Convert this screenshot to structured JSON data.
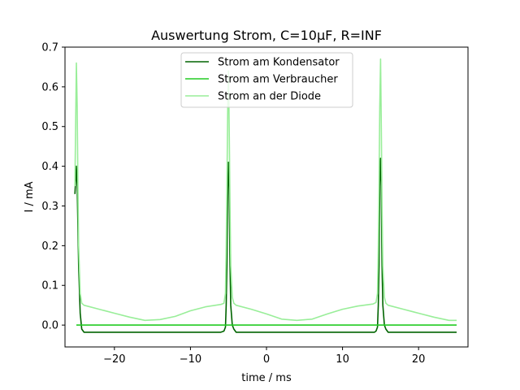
{
  "chart_data": {
    "type": "line",
    "title": "Auswertung Strom, C=10μF, R=INF",
    "xlabel": "time / ms",
    "ylabel": "I / mA",
    "xlim": [
      -26.5,
      26.5
    ],
    "ylim": [
      -0.055,
      0.7
    ],
    "xticks": [
      -20,
      -10,
      0,
      10,
      20
    ],
    "xtick_labels": [
      "−20",
      "−10",
      "0",
      "10",
      "20"
    ],
    "yticks": [
      0.0,
      0.1,
      0.2,
      0.3,
      0.4,
      0.5,
      0.6,
      0.7
    ],
    "ytick_labels": [
      "0.0",
      "0.1",
      "0.2",
      "0.3",
      "0.4",
      "0.5",
      "0.6",
      "0.7"
    ],
    "grid": false,
    "legend_position": "top-center",
    "series": [
      {
        "name": "Strom am Kondensator",
        "color": "#006400",
        "x": [
          -25.2,
          -25.0,
          -24.9,
          -24.7,
          -24.5,
          -24.3,
          -24.0,
          -20,
          -15,
          -10,
          -6,
          -5.6,
          -5.4,
          -5.3,
          -5.2,
          -5.1,
          -5.0,
          -4.9,
          -4.8,
          -4.7,
          -4.5,
          -4.3,
          -4.0,
          0,
          5,
          10,
          14.2,
          14.4,
          14.6,
          14.7,
          14.8,
          14.9,
          15.0,
          15.1,
          15.2,
          15.3,
          15.5,
          15.7,
          16.0,
          20,
          25
        ],
        "y": [
          0.33,
          0.4,
          0.35,
          0.15,
          0.03,
          -0.01,
          -0.018,
          -0.018,
          -0.018,
          -0.018,
          -0.018,
          -0.015,
          -0.005,
          0.05,
          0.15,
          0.34,
          0.41,
          0.35,
          0.15,
          0.05,
          0.0,
          -0.01,
          -0.018,
          -0.018,
          -0.018,
          -0.018,
          -0.018,
          -0.015,
          -0.005,
          0.05,
          0.15,
          0.35,
          0.42,
          0.36,
          0.15,
          0.05,
          0.0,
          -0.01,
          -0.018,
          -0.018,
          -0.018
        ]
      },
      {
        "name": "Strom am Verbraucher",
        "color": "#22cc22",
        "x": [
          -25.0,
          25.0
        ],
        "y": [
          0.0,
          0.0
        ]
      },
      {
        "name": "Strom an der Diode",
        "color": "#99ee99",
        "x": [
          -25.2,
          -25.0,
          -24.9,
          -24.8,
          -24.7,
          -24.5,
          -24.3,
          -24.0,
          -22,
          -20,
          -18,
          -16,
          -14,
          -12,
          -10,
          -8,
          -6,
          -5.6,
          -5.4,
          -5.3,
          -5.2,
          -5.1,
          -5.0,
          -4.9,
          -4.8,
          -4.7,
          -4.5,
          -4.3,
          -4.0,
          -2,
          0,
          2,
          4,
          6,
          8,
          10,
          12,
          14,
          14.4,
          14.6,
          14.7,
          14.8,
          14.9,
          15.0,
          15.1,
          15.2,
          15.3,
          15.5,
          15.7,
          16.0,
          18,
          20,
          22,
          24,
          25
        ],
        "y": [
          0.35,
          0.66,
          0.55,
          0.35,
          0.2,
          0.08,
          0.055,
          0.05,
          0.04,
          0.03,
          0.02,
          0.012,
          0.014,
          0.022,
          0.036,
          0.046,
          0.052,
          0.055,
          0.08,
          0.2,
          0.35,
          0.55,
          0.64,
          0.5,
          0.3,
          0.15,
          0.07,
          0.055,
          0.05,
          0.04,
          0.028,
          0.015,
          0.012,
          0.015,
          0.028,
          0.04,
          0.048,
          0.053,
          0.057,
          0.08,
          0.2,
          0.35,
          0.55,
          0.67,
          0.5,
          0.3,
          0.15,
          0.07,
          0.055,
          0.05,
          0.04,
          0.03,
          0.02,
          0.012,
          0.012
        ]
      }
    ]
  }
}
